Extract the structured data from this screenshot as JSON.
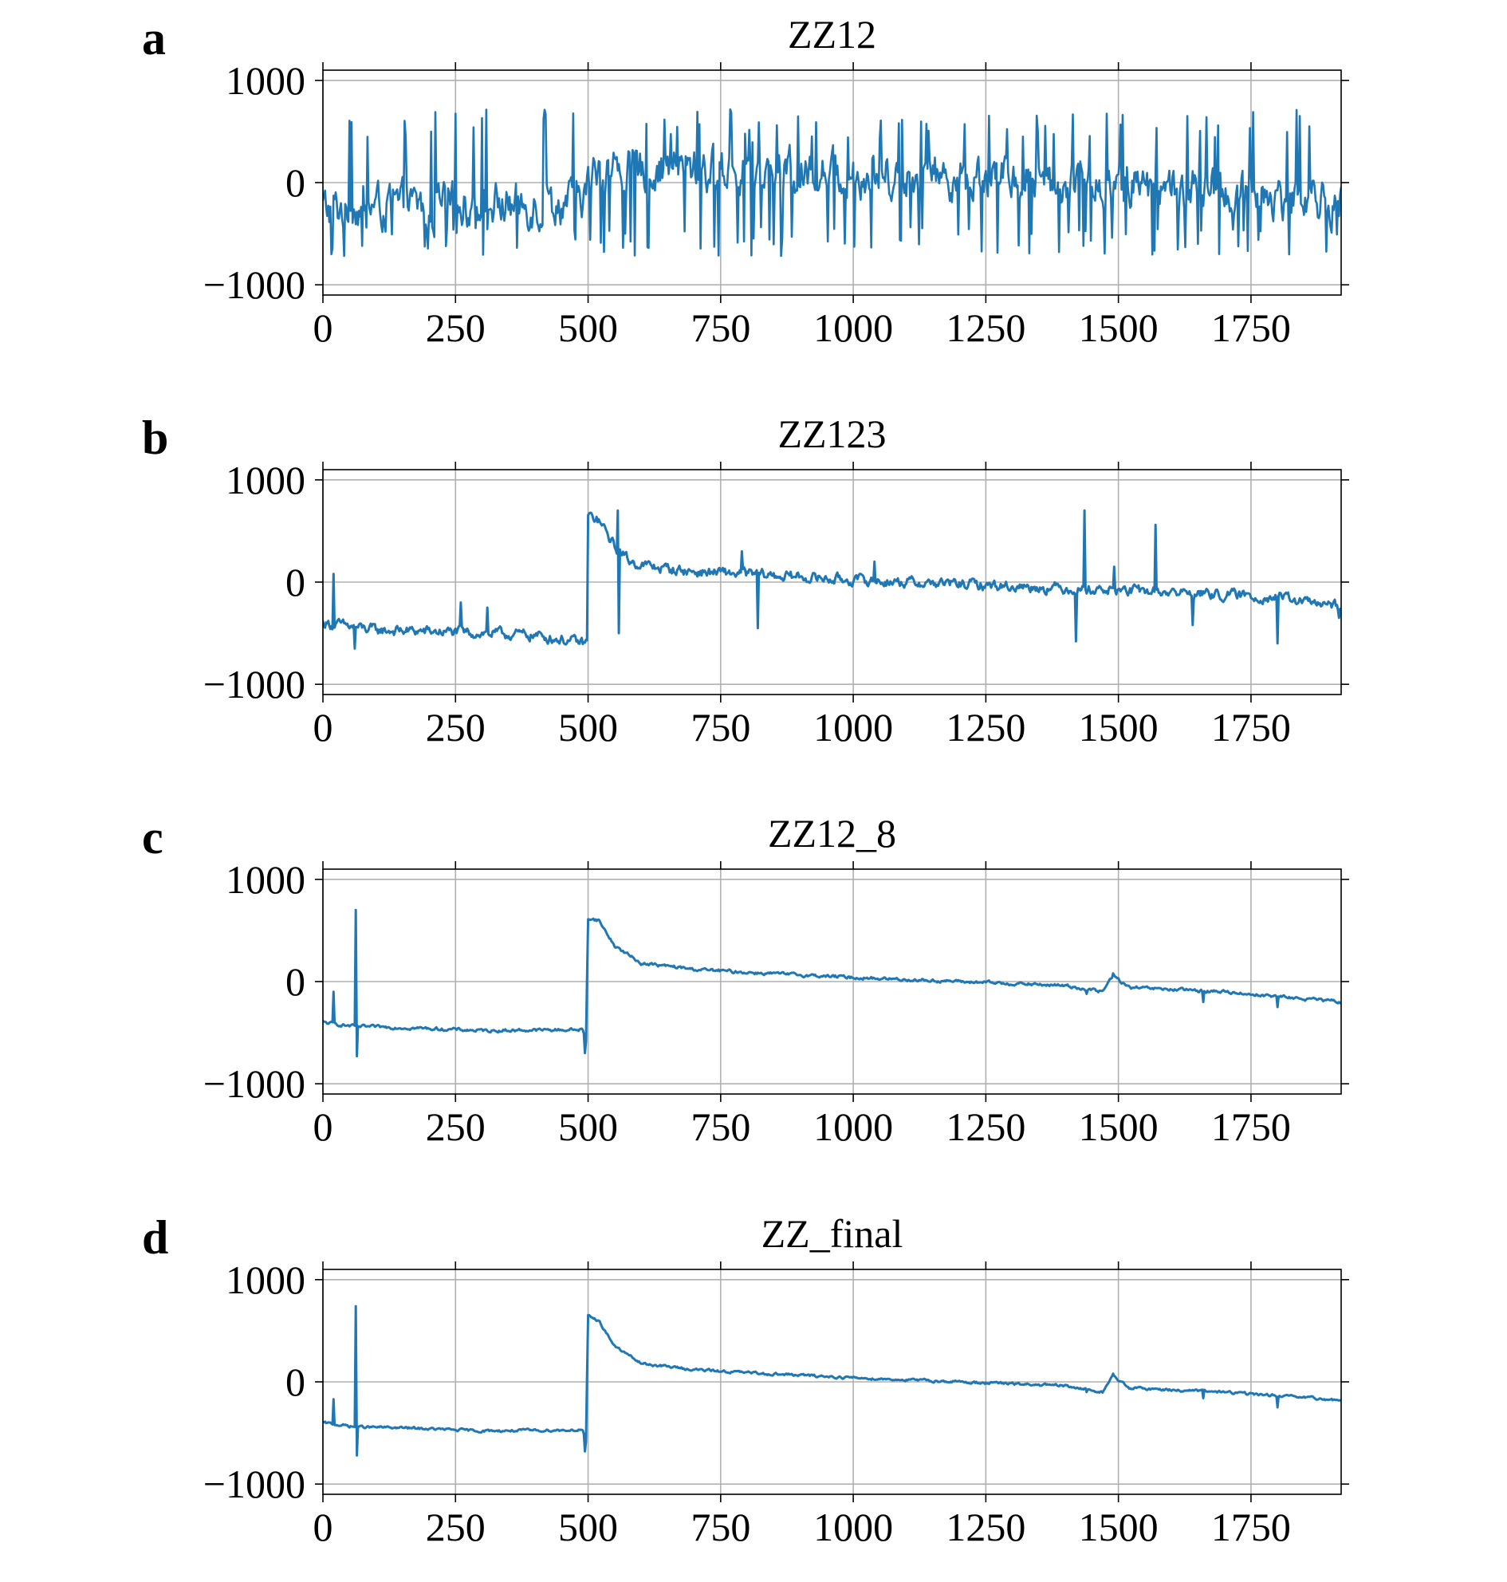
{
  "colors": {
    "series": "#1f77b4",
    "grid": "#b0b0b0",
    "axes": "#000000"
  },
  "chart_data": [
    {
      "type": "line",
      "panel_label": "a",
      "title": "ZZ12",
      "xlim": [
        0,
        1920
      ],
      "ylim": [
        -1100,
        1100
      ],
      "xticks": [
        0,
        250,
        500,
        750,
        1000,
        1250,
        1500,
        1750
      ],
      "yticks": [
        -1000,
        0,
        1000
      ],
      "ytick_labels": [
        "−1000",
        "0",
        "1000"
      ],
      "grid": true,
      "series": [
        {
          "style": "noisy",
          "knots": [
            [
              0,
              -250
            ],
            [
              480,
              -200
            ],
            [
              520,
              150
            ],
            [
              1100,
              80
            ],
            [
              1500,
              0
            ],
            [
              1920,
              -200
            ]
          ],
          "noise": 170,
          "spike_rate": 0.16,
          "spike_up": 720,
          "spike_down": -720,
          "step": 2
        }
      ]
    },
    {
      "type": "line",
      "panel_label": "b",
      "title": "ZZ123",
      "xlim": [
        0,
        1920
      ],
      "ylim": [
        -1100,
        1100
      ],
      "xticks": [
        0,
        250,
        500,
        750,
        1000,
        1250,
        1500,
        1750
      ],
      "yticks": [
        -1000,
        0,
        1000
      ],
      "ytick_labels": [
        "−1000",
        "0",
        "1000"
      ],
      "grid": true,
      "series": [
        {
          "style": "signal",
          "knots": [
            [
              0,
              -400
            ],
            [
              100,
              -470
            ],
            [
              250,
              -490
            ],
            [
              400,
              -520
            ],
            [
              494,
              -600
            ],
            [
              498,
              -580
            ],
            [
              500,
              650
            ],
            [
              520,
              600
            ],
            [
              550,
              350
            ],
            [
              580,
              200
            ],
            [
              620,
              150
            ],
            [
              700,
              100
            ],
            [
              800,
              80
            ],
            [
              1000,
              20
            ],
            [
              1200,
              -20
            ],
            [
              1400,
              -60
            ],
            [
              1600,
              -100
            ],
            [
              1800,
              -150
            ],
            [
              1920,
              -250
            ]
          ],
          "noise": 40,
          "spikes": [
            [
              20,
              80
            ],
            [
              60,
              -650
            ],
            [
              260,
              -200
            ],
            [
              310,
              -250
            ],
            [
              555,
              700
            ],
            [
              557,
              -500
            ],
            [
              790,
              300
            ],
            [
              820,
              -450
            ],
            [
              1040,
              200
            ],
            [
              1420,
              -580
            ],
            [
              1435,
              700
            ],
            [
              1492,
              150
            ],
            [
              1570,
              560
            ],
            [
              1640,
              -420
            ],
            [
              1800,
              -600
            ],
            [
              1915,
              -350
            ]
          ],
          "step": 2
        }
      ]
    },
    {
      "type": "line",
      "panel_label": "c",
      "title": "ZZ12_8",
      "xlim": [
        0,
        1920
      ],
      "ylim": [
        -1100,
        1100
      ],
      "xticks": [
        0,
        250,
        500,
        750,
        1000,
        1250,
        1500,
        1750
      ],
      "yticks": [
        -1000,
        0,
        1000
      ],
      "ytick_labels": [
        "−1000",
        "0",
        "1000"
      ],
      "grid": true,
      "series": [
        {
          "style": "signal",
          "knots": [
            [
              0,
              -400
            ],
            [
              60,
              -440
            ],
            [
              150,
              -450
            ],
            [
              300,
              -480
            ],
            [
              490,
              -470
            ],
            [
              496,
              -600
            ],
            [
              500,
              620
            ],
            [
              520,
              600
            ],
            [
              550,
              350
            ],
            [
              600,
              180
            ],
            [
              700,
              120
            ],
            [
              800,
              90
            ],
            [
              1000,
              40
            ],
            [
              1200,
              0
            ],
            [
              1400,
              -40
            ],
            [
              1470,
              -100
            ],
            [
              1490,
              60
            ],
            [
              1520,
              -60
            ],
            [
              1700,
              -100
            ],
            [
              1920,
              -200
            ]
          ],
          "noise": 12,
          "spikes": [
            [
              20,
              -100
            ],
            [
              62,
              700
            ],
            [
              64,
              -730
            ],
            [
              494,
              -700
            ],
            [
              1440,
              -120
            ],
            [
              1490,
              80
            ],
            [
              1660,
              -200
            ],
            [
              1800,
              -250
            ]
          ],
          "step": 2
        }
      ]
    },
    {
      "type": "line",
      "panel_label": "d",
      "title": "ZZ_final",
      "xlim": [
        0,
        1920
      ],
      "ylim": [
        -1100,
        1100
      ],
      "xticks": [
        0,
        250,
        500,
        750,
        1000,
        1250,
        1500,
        1750
      ],
      "yticks": [
        -1000,
        0,
        1000
      ],
      "ytick_labels": [
        "−1000",
        "0",
        "1000"
      ],
      "grid": true,
      "series": [
        {
          "style": "signal",
          "knots": [
            [
              0,
              -400
            ],
            [
              60,
              -440
            ],
            [
              150,
              -450
            ],
            [
              300,
              -480
            ],
            [
              490,
              -470
            ],
            [
              496,
              -600
            ],
            [
              500,
              640
            ],
            [
              520,
              600
            ],
            [
              550,
              350
            ],
            [
              600,
              180
            ],
            [
              700,
              120
            ],
            [
              800,
              90
            ],
            [
              1000,
              40
            ],
            [
              1200,
              0
            ],
            [
              1400,
              -40
            ],
            [
              1470,
              -100
            ],
            [
              1490,
              60
            ],
            [
              1520,
              -60
            ],
            [
              1700,
              -100
            ],
            [
              1920,
              -180
            ]
          ],
          "noise": 10,
          "spikes": [
            [
              20,
              -170
            ],
            [
              62,
              740
            ],
            [
              64,
              -720
            ],
            [
              494,
              -680
            ],
            [
              1440,
              -100
            ],
            [
              1490,
              80
            ],
            [
              1660,
              -160
            ],
            [
              1800,
              -250
            ]
          ],
          "step": 2
        }
      ]
    }
  ]
}
